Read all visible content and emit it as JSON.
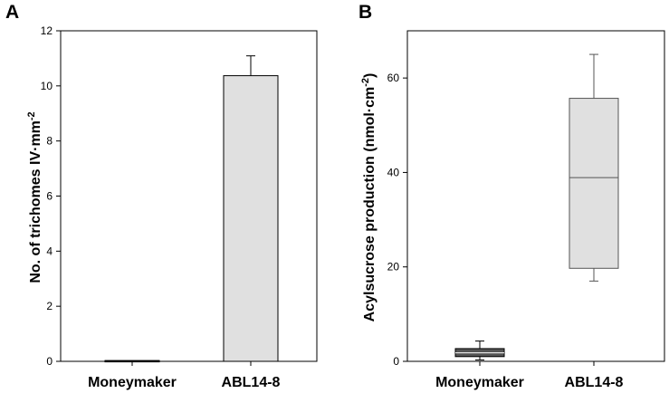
{
  "chart_data": [
    {
      "type": "bar",
      "panel_label": "A",
      "categories": [
        "Moneymaker",
        "ABL14-8"
      ],
      "values": [
        0.03,
        10.37
      ],
      "error_upper": [
        0.0,
        0.72
      ],
      "xlabel": "",
      "ylabel": "No. of trichomes IV·mm",
      "ylabel_sup": "-2",
      "ylim": [
        0,
        12
      ],
      "yticks": [
        "0",
        "2",
        "4",
        "6",
        "8",
        "10",
        "12"
      ],
      "grid": false,
      "bar_color": "#e0e0e0"
    },
    {
      "type": "box",
      "panel_label": "B",
      "categories": [
        "Moneymaker",
        "ABL14-8"
      ],
      "boxes": [
        {
          "whisker_low": 0.3,
          "q1": 1.0,
          "median": 1.8,
          "q3": 2.7,
          "whisker_high": 4.3
        },
        {
          "whisker_low": 17.0,
          "q1": 19.7,
          "median": 38.9,
          "q3": 55.7,
          "whisker_high": 65.0
        }
      ],
      "box_colors": [
        "#555555",
        "#e0e0e0"
      ],
      "xlabel": "",
      "ylabel": "Acylsucrose production (nmol·cm",
      "ylabel_sup": "-2",
      "ylabel_suffix": ")",
      "ylim": [
        0,
        70
      ],
      "yticks": [
        "0",
        "20",
        "40",
        "60"
      ],
      "grid": false
    }
  ]
}
